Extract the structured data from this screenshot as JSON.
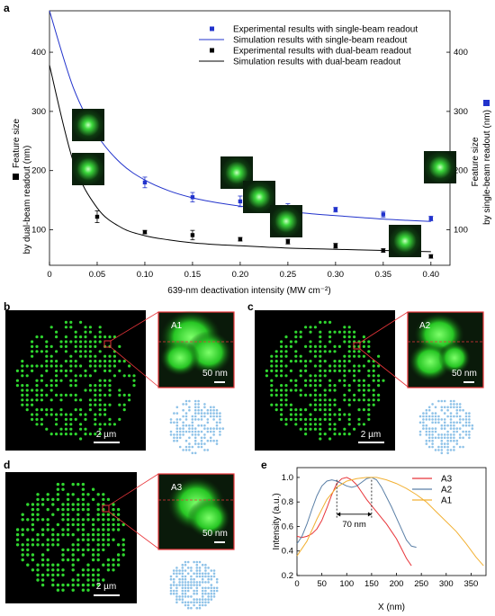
{
  "panels": {
    "a": "a",
    "b": "b",
    "c": "c",
    "d": "d",
    "e": "e"
  },
  "images": {
    "b": {
      "scale_label": "2 µm",
      "zoom_label": "A1",
      "zoom_scale": "50 nm"
    },
    "c": {
      "scale_label": "2 µm",
      "zoom_label": "A2",
      "zoom_scale": "50 nm"
    },
    "d": {
      "scale_label": "2 µm",
      "zoom_label": "A3",
      "zoom_scale": "50 nm"
    }
  },
  "colors": {
    "blue": "#2233cc",
    "black": "#000000",
    "red": "#e8353a",
    "steel": "#5a7fa6",
    "orange": "#f2b134",
    "green": "#2fd62f",
    "lightblue": "#8ec2e8"
  },
  "chart_data": [
    {
      "type": "scatter",
      "xlabel": "639-nm deactivation intensity (MW cm⁻²)",
      "ylabel_left_line1": "Feature size",
      "ylabel_left_line2": "by dual-beam readout (nm)",
      "ylabel_right_line1": "Feature size",
      "ylabel_right_line2": "by single-beam readout (nm)",
      "xlim": [
        0,
        0.42
      ],
      "ylim": [
        40,
        470
      ],
      "x_ticks": [
        "0",
        "0.05",
        "0.10",
        "0.15",
        "0.20",
        "0.25",
        "0.30",
        "0.35",
        "0.40"
      ],
      "x_tick_values": [
        0,
        0.05,
        0.1,
        0.15,
        0.2,
        0.25,
        0.3,
        0.35,
        0.4
      ],
      "y_ticks": [
        "100",
        "200",
        "300",
        "400"
      ],
      "y_tick_values": [
        100,
        200,
        300,
        400
      ],
      "legend_position": "top-right",
      "legend": [
        "Experimental results with single-beam readout",
        "Simulation results with single-beam readout",
        "Experimental results with dual-beam readout",
        "Simulation results with dual-beam readout"
      ],
      "series": [
        {
          "name": "Experimental results with single-beam readout",
          "kind": "points",
          "color": "#2233cc",
          "x": [
            0.05,
            0.1,
            0.15,
            0.2,
            0.25,
            0.3,
            0.35,
            0.4
          ],
          "y": [
            212,
            180,
            155,
            148,
            138,
            134,
            126,
            119
          ],
          "err": [
            14,
            9,
            8,
            9,
            6,
            4,
            5,
            4
          ]
        },
        {
          "name": "Simulation results with single-beam readout",
          "kind": "line",
          "color": "#2233cc",
          "x": [
            0,
            0.025,
            0.05,
            0.075,
            0.1,
            0.125,
            0.15,
            0.175,
            0.2,
            0.225,
            0.25,
            0.275,
            0.3,
            0.325,
            0.35,
            0.375,
            0.4
          ],
          "y": [
            478,
            340,
            260,
            212,
            184,
            166,
            154,
            146,
            140,
            135,
            131,
            127,
            124,
            121,
            118,
            116,
            114
          ]
        },
        {
          "name": "Experimental results with dual-beam readout",
          "kind": "points",
          "color": "#000000",
          "x": [
            0.05,
            0.1,
            0.15,
            0.2,
            0.25,
            0.3,
            0.35,
            0.4
          ],
          "y": [
            122,
            96,
            91,
            84,
            80,
            73,
            65,
            55
          ],
          "err": [
            10,
            3,
            8,
            3,
            4,
            4,
            3,
            3
          ]
        },
        {
          "name": "Simulation results with dual-beam readout",
          "kind": "line",
          "color": "#000000",
          "x": [
            0,
            0.025,
            0.05,
            0.075,
            0.1,
            0.125,
            0.15,
            0.175,
            0.2,
            0.225,
            0.25,
            0.275,
            0.3,
            0.325,
            0.35,
            0.375,
            0.4
          ],
          "y": [
            378,
            215,
            137,
            104,
            90,
            83,
            78,
            75,
            73,
            71,
            69,
            68,
            67,
            66,
            65,
            64,
            63
          ]
        }
      ]
    },
    {
      "type": "line",
      "xlabel": "X (nm)",
      "ylabel": "Intensity (a.u.)",
      "xlim": [
        0,
        380
      ],
      "ylim": [
        0.2,
        1.08
      ],
      "x_ticks": [
        "0",
        "50",
        "100",
        "150",
        "200",
        "250",
        "300",
        "350"
      ],
      "x_tick_values": [
        0,
        50,
        100,
        150,
        200,
        250,
        300,
        350
      ],
      "y_ticks": [
        "0.2",
        "0.4",
        "0.6",
        "0.8",
        "1.0"
      ],
      "y_tick_values": [
        0.2,
        0.4,
        0.6,
        0.8,
        1.0
      ],
      "annotation": "70 nm",
      "annotation_x": [
        80,
        150
      ],
      "legend_position": "top-right",
      "series": [
        {
          "name": "A3",
          "color": "#e8353a",
          "x": [
            0,
            10,
            20,
            30,
            40,
            50,
            60,
            70,
            80,
            90,
            100,
            110,
            120,
            130,
            140,
            150,
            160,
            170,
            180,
            190,
            200,
            210,
            220,
            230
          ],
          "y": [
            0.52,
            0.51,
            0.52,
            0.54,
            0.58,
            0.65,
            0.75,
            0.86,
            0.95,
            0.99,
            1.0,
            0.98,
            0.94,
            0.88,
            0.82,
            0.77,
            0.72,
            0.67,
            0.62,
            0.56,
            0.5,
            0.42,
            0.34,
            0.28
          ]
        },
        {
          "name": "A2",
          "color": "#5a7fa6",
          "x": [
            0,
            10,
            20,
            30,
            40,
            50,
            60,
            70,
            80,
            90,
            100,
            110,
            120,
            130,
            140,
            150,
            160,
            170,
            180,
            190,
            200,
            210,
            220,
            230,
            240
          ],
          "y": [
            0.46,
            0.52,
            0.62,
            0.74,
            0.85,
            0.93,
            0.97,
            0.98,
            0.97,
            0.95,
            0.93,
            0.92,
            0.93,
            0.96,
            0.99,
            1.0,
            0.98,
            0.92,
            0.84,
            0.76,
            0.67,
            0.58,
            0.49,
            0.44,
            0.43
          ]
        },
        {
          "name": "A1",
          "color": "#f2b134",
          "x": [
            0,
            20,
            40,
            60,
            80,
            100,
            120,
            140,
            160,
            180,
            200,
            220,
            240,
            260,
            280,
            300,
            320,
            340,
            360,
            375
          ],
          "y": [
            0.36,
            0.48,
            0.66,
            0.82,
            0.92,
            0.97,
            0.99,
            1.0,
            1.0,
            0.98,
            0.95,
            0.91,
            0.86,
            0.8,
            0.72,
            0.64,
            0.56,
            0.46,
            0.35,
            0.28
          ]
        }
      ]
    }
  ]
}
